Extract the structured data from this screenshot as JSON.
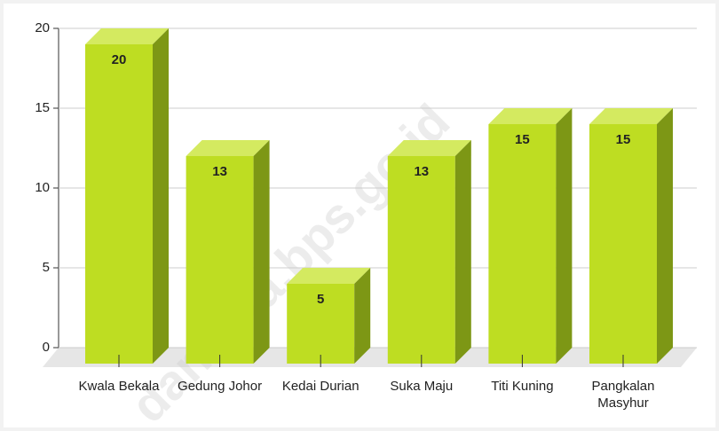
{
  "chart_data": {
    "type": "bar3d",
    "categories": [
      "Kwala Bekala",
      "Gedung Johor",
      "Kedai Durian",
      "Suka Maju",
      "Titi Kuning",
      "Pangkalan Masyhur"
    ],
    "values": [
      20,
      13,
      5,
      13,
      15,
      15
    ],
    "color": "#bedd22",
    "side_color": "#7d9715",
    "top_color": "#d4ea60",
    "ylim": [
      0,
      20
    ],
    "yticks": [
      0,
      5,
      10,
      15,
      20
    ],
    "grid": true,
    "watermark": "dankota.bps.go.id"
  }
}
